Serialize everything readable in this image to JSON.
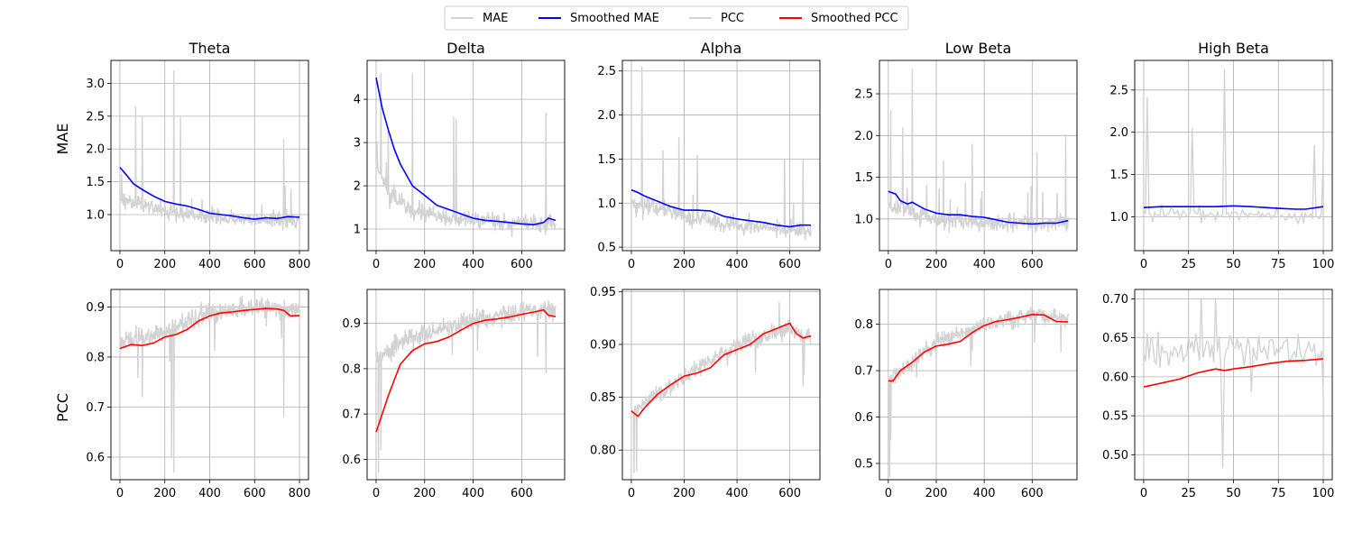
{
  "legend": [
    {
      "label": "MAE",
      "color": "#d3d3d3"
    },
    {
      "label": "Smoothed MAE",
      "color": "#0000ff"
    },
    {
      "label": "PCC",
      "color": "#d3d3d3"
    },
    {
      "label": "Smoothed PCC",
      "color": "#ff0000"
    }
  ],
  "row_labels": [
    "MAE",
    "PCC"
  ],
  "colors": {
    "raw": "#d3d3d3",
    "mae_smooth": "#0000ff",
    "pcc_smooth": "#ff0000",
    "grid": "#b0b0b0"
  },
  "chart_data": [
    {
      "type": "line",
      "title": "Theta",
      "ylabel": "MAE",
      "metric": "MAE",
      "n": 800,
      "xlim": [
        -40,
        840
      ],
      "ylim": [
        0.45,
        3.35
      ],
      "xticks": [
        0,
        200,
        400,
        600,
        800
      ],
      "yticks": [
        1.0,
        1.5,
        2.0,
        2.5,
        3.0
      ],
      "ytick_labels": [
        "1.0",
        "1.5",
        "2.0",
        "2.5",
        "3.0"
      ],
      "raw_base": [
        [
          0,
          1.25
        ],
        [
          200,
          1.05
        ],
        [
          400,
          0.95
        ],
        [
          800,
          0.9
        ]
      ],
      "raw_noise": 0.18,
      "raw_spikes": [
        [
          70,
          2.65
        ],
        [
          100,
          2.5
        ],
        [
          240,
          3.2
        ],
        [
          270,
          2.5
        ],
        [
          730,
          2.15
        ]
      ],
      "smoothed": [
        [
          0,
          1.72
        ],
        [
          30,
          1.6
        ],
        [
          60,
          1.47
        ],
        [
          100,
          1.38
        ],
        [
          150,
          1.28
        ],
        [
          200,
          1.2
        ],
        [
          250,
          1.16
        ],
        [
          300,
          1.13
        ],
        [
          350,
          1.08
        ],
        [
          400,
          1.02
        ],
        [
          450,
          1.0
        ],
        [
          500,
          0.98
        ],
        [
          550,
          0.95
        ],
        [
          600,
          0.93
        ],
        [
          650,
          0.95
        ],
        [
          700,
          0.94
        ],
        [
          750,
          0.97
        ],
        [
          800,
          0.96
        ]
      ]
    },
    {
      "type": "line",
      "title": "Delta",
      "ylabel": "",
      "metric": "MAE",
      "n": 740,
      "xlim": [
        -37,
        777
      ],
      "ylim": [
        0.5,
        4.9
      ],
      "xticks": [
        0,
        200,
        400,
        600
      ],
      "yticks": [
        1,
        2,
        3,
        4
      ],
      "ytick_labels": [
        "1",
        "2",
        "3",
        "4"
      ],
      "raw_base": [
        [
          0,
          2.6
        ],
        [
          50,
          1.8
        ],
        [
          150,
          1.4
        ],
        [
          300,
          1.25
        ],
        [
          740,
          1.1
        ]
      ],
      "raw_noise": 0.3,
      "raw_spikes": [
        [
          20,
          4.6
        ],
        [
          50,
          3.3
        ],
        [
          150,
          4.6
        ],
        [
          320,
          3.6
        ],
        [
          330,
          3.55
        ],
        [
          700,
          3.7
        ]
      ],
      "smoothed": [
        [
          0,
          4.5
        ],
        [
          25,
          3.8
        ],
        [
          50,
          3.3
        ],
        [
          75,
          2.85
        ],
        [
          100,
          2.5
        ],
        [
          150,
          2.0
        ],
        [
          200,
          1.78
        ],
        [
          250,
          1.55
        ],
        [
          300,
          1.45
        ],
        [
          350,
          1.35
        ],
        [
          400,
          1.25
        ],
        [
          450,
          1.2
        ],
        [
          500,
          1.18
        ],
        [
          550,
          1.15
        ],
        [
          600,
          1.12
        ],
        [
          650,
          1.1
        ],
        [
          690,
          1.15
        ],
        [
          710,
          1.25
        ],
        [
          740,
          1.2
        ]
      ]
    },
    {
      "type": "line",
      "title": "Alpha",
      "ylabel": "",
      "metric": "MAE",
      "n": 680,
      "xlim": [
        -34,
        714
      ],
      "ylim": [
        0.46,
        2.62
      ],
      "xticks": [
        0,
        200,
        400,
        600
      ],
      "yticks": [
        0.5,
        1.0,
        1.5,
        2.0,
        2.5
      ],
      "ytick_labels": [
        "0.5",
        "1.0",
        "1.5",
        "2.0",
        "2.5"
      ],
      "raw_base": [
        [
          0,
          1.0
        ],
        [
          200,
          0.85
        ],
        [
          400,
          0.75
        ],
        [
          680,
          0.68
        ]
      ],
      "raw_noise": 0.15,
      "raw_spikes": [
        [
          40,
          2.55
        ],
        [
          120,
          1.6
        ],
        [
          180,
          1.75
        ],
        [
          250,
          1.55
        ],
        [
          580,
          1.5
        ],
        [
          650,
          1.5
        ]
      ],
      "smoothed": [
        [
          0,
          1.15
        ],
        [
          25,
          1.12
        ],
        [
          50,
          1.08
        ],
        [
          100,
          1.02
        ],
        [
          150,
          0.96
        ],
        [
          200,
          0.92
        ],
        [
          250,
          0.92
        ],
        [
          300,
          0.91
        ],
        [
          350,
          0.85
        ],
        [
          400,
          0.82
        ],
        [
          450,
          0.8
        ],
        [
          500,
          0.78
        ],
        [
          550,
          0.75
        ],
        [
          600,
          0.73
        ],
        [
          640,
          0.75
        ],
        [
          680,
          0.75
        ]
      ]
    },
    {
      "type": "line",
      "title": "Low Beta",
      "ylabel": "",
      "metric": "MAE",
      "n": 750,
      "xlim": [
        -37,
        787
      ],
      "ylim": [
        0.62,
        2.9
      ],
      "xticks": [
        0,
        200,
        400,
        600
      ],
      "yticks": [
        1.0,
        1.5,
        2.0,
        2.5
      ],
      "ytick_labels": [
        "1.0",
        "1.5",
        "2.0",
        "2.5"
      ],
      "raw_base": [
        [
          0,
          1.15
        ],
        [
          200,
          1.0
        ],
        [
          400,
          0.95
        ],
        [
          750,
          0.95
        ]
      ],
      "raw_noise": 0.14,
      "raw_spikes": [
        [
          10,
          2.3
        ],
        [
          60,
          2.1
        ],
        [
          100,
          2.8
        ],
        [
          230,
          1.7
        ],
        [
          350,
          1.9
        ],
        [
          620,
          1.8
        ],
        [
          740,
          2.0
        ]
      ],
      "smoothed": [
        [
          0,
          1.33
        ],
        [
          30,
          1.3
        ],
        [
          50,
          1.22
        ],
        [
          80,
          1.18
        ],
        [
          100,
          1.2
        ],
        [
          150,
          1.12
        ],
        [
          200,
          1.07
        ],
        [
          250,
          1.05
        ],
        [
          300,
          1.05
        ],
        [
          350,
          1.03
        ],
        [
          400,
          1.02
        ],
        [
          450,
          0.99
        ],
        [
          500,
          0.96
        ],
        [
          550,
          0.95
        ],
        [
          600,
          0.94
        ],
        [
          650,
          0.95
        ],
        [
          700,
          0.95
        ],
        [
          750,
          0.98
        ]
      ]
    },
    {
      "type": "line",
      "title": "High Beta",
      "ylabel": "",
      "metric": "MAE",
      "n": 100,
      "xlim": [
        -5,
        105
      ],
      "ylim": [
        0.6,
        2.85
      ],
      "xticks": [
        0,
        25,
        50,
        75,
        100
      ],
      "yticks": [
        1.0,
        1.5,
        2.0,
        2.5
      ],
      "ytick_labels": [
        "1.0",
        "1.5",
        "2.0",
        "2.5"
      ],
      "raw_base": [
        [
          0,
          1.05
        ],
        [
          100,
          1.0
        ]
      ],
      "raw_noise": 0.12,
      "raw_spikes": [
        [
          2,
          2.42
        ],
        [
          27,
          2.05
        ],
        [
          45,
          2.75
        ],
        [
          95,
          1.85
        ],
        [
          100,
          1.72
        ]
      ],
      "smoothed": [
        [
          0,
          1.11
        ],
        [
          10,
          1.12
        ],
        [
          25,
          1.12
        ],
        [
          40,
          1.12
        ],
        [
          50,
          1.13
        ],
        [
          60,
          1.12
        ],
        [
          75,
          1.1
        ],
        [
          85,
          1.09
        ],
        [
          90,
          1.09
        ],
        [
          100,
          1.12
        ]
      ]
    },
    {
      "type": "line",
      "title": "",
      "ylabel": "PCC",
      "metric": "PCC",
      "n": 800,
      "xlim": [
        -40,
        840
      ],
      "ylim": [
        0.555,
        0.935
      ],
      "xticks": [
        0,
        200,
        400,
        600,
        800
      ],
      "yticks": [
        0.6,
        0.7,
        0.8,
        0.9
      ],
      "ytick_labels": [
        "0.6",
        "0.7",
        "0.8",
        "0.9"
      ],
      "raw_base": [
        [
          0,
          0.83
        ],
        [
          200,
          0.85
        ],
        [
          400,
          0.89
        ],
        [
          600,
          0.9
        ],
        [
          800,
          0.89
        ]
      ],
      "raw_noise": 0.03,
      "raw_spikes": [
        [
          240,
          0.57
        ],
        [
          230,
          0.6
        ],
        [
          730,
          0.68
        ],
        [
          100,
          0.72
        ]
      ],
      "smoothed": [
        [
          0,
          0.817
        ],
        [
          50,
          0.825
        ],
        [
          100,
          0.823
        ],
        [
          150,
          0.828
        ],
        [
          200,
          0.84
        ],
        [
          250,
          0.845
        ],
        [
          300,
          0.855
        ],
        [
          350,
          0.872
        ],
        [
          400,
          0.882
        ],
        [
          450,
          0.888
        ],
        [
          500,
          0.89
        ],
        [
          550,
          0.893
        ],
        [
          600,
          0.895
        ],
        [
          650,
          0.897
        ],
        [
          700,
          0.896
        ],
        [
          730,
          0.893
        ],
        [
          760,
          0.882
        ],
        [
          800,
          0.883
        ]
      ]
    },
    {
      "type": "line",
      "title": "",
      "ylabel": "",
      "metric": "PCC",
      "n": 740,
      "xlim": [
        -37,
        777
      ],
      "ylim": [
        0.555,
        0.975
      ],
      "xticks": [
        0,
        200,
        400,
        600
      ],
      "yticks": [
        0.6,
        0.7,
        0.8,
        0.9
      ],
      "ytick_labels": [
        "0.6",
        "0.7",
        "0.8",
        "0.9"
      ],
      "raw_base": [
        [
          0,
          0.82
        ],
        [
          100,
          0.86
        ],
        [
          300,
          0.89
        ],
        [
          500,
          0.92
        ],
        [
          740,
          0.93
        ]
      ],
      "raw_noise": 0.035,
      "raw_spikes": [
        [
          10,
          0.57
        ],
        [
          700,
          0.79
        ],
        [
          20,
          0.62
        ]
      ],
      "smoothed": [
        [
          0,
          0.66
        ],
        [
          25,
          0.7
        ],
        [
          50,
          0.74
        ],
        [
          75,
          0.775
        ],
        [
          100,
          0.81
        ],
        [
          150,
          0.84
        ],
        [
          200,
          0.855
        ],
        [
          250,
          0.86
        ],
        [
          300,
          0.87
        ],
        [
          350,
          0.885
        ],
        [
          400,
          0.9
        ],
        [
          450,
          0.907
        ],
        [
          500,
          0.91
        ],
        [
          550,
          0.914
        ],
        [
          600,
          0.92
        ],
        [
          650,
          0.925
        ],
        [
          690,
          0.93
        ],
        [
          710,
          0.918
        ],
        [
          740,
          0.915
        ]
      ]
    },
    {
      "type": "line",
      "title": "",
      "ylabel": "",
      "metric": "PCC",
      "n": 680,
      "xlim": [
        -34,
        714
      ],
      "ylim": [
        0.772,
        0.952
      ],
      "xticks": [
        0,
        200,
        400,
        600
      ],
      "yticks": [
        0.8,
        0.85,
        0.9,
        0.95
      ],
      "ytick_labels": [
        "0.80",
        "0.85",
        "0.90",
        "0.95"
      ],
      "raw_base": [
        [
          0,
          0.835
        ],
        [
          200,
          0.87
        ],
        [
          400,
          0.9
        ],
        [
          600,
          0.915
        ],
        [
          680,
          0.905
        ]
      ],
      "raw_noise": 0.012,
      "raw_spikes": [
        [
          10,
          0.778
        ],
        [
          20,
          0.78
        ],
        [
          650,
          0.86
        ],
        [
          560,
          0.94
        ]
      ],
      "smoothed": [
        [
          0,
          0.837
        ],
        [
          25,
          0.832
        ],
        [
          50,
          0.84
        ],
        [
          100,
          0.853
        ],
        [
          150,
          0.862
        ],
        [
          200,
          0.87
        ],
        [
          250,
          0.873
        ],
        [
          300,
          0.878
        ],
        [
          350,
          0.89
        ],
        [
          400,
          0.895
        ],
        [
          450,
          0.9
        ],
        [
          500,
          0.91
        ],
        [
          550,
          0.915
        ],
        [
          600,
          0.92
        ],
        [
          625,
          0.91
        ],
        [
          650,
          0.906
        ],
        [
          680,
          0.908
        ]
      ]
    },
    {
      "type": "line",
      "title": "",
      "ylabel": "",
      "metric": "PCC",
      "n": 750,
      "xlim": [
        -37,
        787
      ],
      "ylim": [
        0.465,
        0.875
      ],
      "xticks": [
        0,
        200,
        400,
        600
      ],
      "yticks": [
        0.5,
        0.6,
        0.7,
        0.8
      ],
      "ytick_labels": [
        "0.5",
        "0.6",
        "0.7",
        "0.8"
      ],
      "raw_base": [
        [
          0,
          0.68
        ],
        [
          200,
          0.76
        ],
        [
          400,
          0.8
        ],
        [
          600,
          0.82
        ],
        [
          750,
          0.81
        ]
      ],
      "raw_noise": 0.03,
      "raw_spikes": [
        [
          5,
          0.47
        ],
        [
          10,
          0.55
        ],
        [
          720,
          0.74
        ]
      ],
      "smoothed": [
        [
          0,
          0.678
        ],
        [
          20,
          0.678
        ],
        [
          50,
          0.7
        ],
        [
          100,
          0.718
        ],
        [
          150,
          0.74
        ],
        [
          200,
          0.753
        ],
        [
          250,
          0.757
        ],
        [
          300,
          0.763
        ],
        [
          350,
          0.782
        ],
        [
          400,
          0.797
        ],
        [
          450,
          0.806
        ],
        [
          500,
          0.81
        ],
        [
          550,
          0.815
        ],
        [
          600,
          0.821
        ],
        [
          650,
          0.82
        ],
        [
          700,
          0.806
        ],
        [
          750,
          0.805
        ]
      ]
    },
    {
      "type": "line",
      "title": "",
      "ylabel": "",
      "metric": "PCC",
      "n": 100,
      "xlim": [
        -5,
        105
      ],
      "ylim": [
        0.468,
        0.712
      ],
      "xticks": [
        0,
        25,
        50,
        75,
        100
      ],
      "yticks": [
        0.5,
        0.55,
        0.6,
        0.65,
        0.7
      ],
      "ytick_labels": [
        "0.50",
        "0.55",
        "0.60",
        "0.65",
        "0.70"
      ],
      "raw_base": [
        [
          0,
          0.63
        ],
        [
          50,
          0.635
        ],
        [
          100,
          0.64
        ]
      ],
      "raw_noise": 0.03,
      "raw_spikes": [
        [
          44,
          0.483
        ],
        [
          32,
          0.7
        ],
        [
          40,
          0.7
        ],
        [
          60,
          0.58
        ],
        [
          100,
          0.58
        ]
      ],
      "smoothed": [
        [
          0,
          0.587
        ],
        [
          10,
          0.592
        ],
        [
          20,
          0.597
        ],
        [
          30,
          0.605
        ],
        [
          40,
          0.61
        ],
        [
          45,
          0.608
        ],
        [
          50,
          0.61
        ],
        [
          60,
          0.613
        ],
        [
          70,
          0.617
        ],
        [
          80,
          0.62
        ],
        [
          90,
          0.621
        ],
        [
          100,
          0.623
        ]
      ]
    }
  ]
}
